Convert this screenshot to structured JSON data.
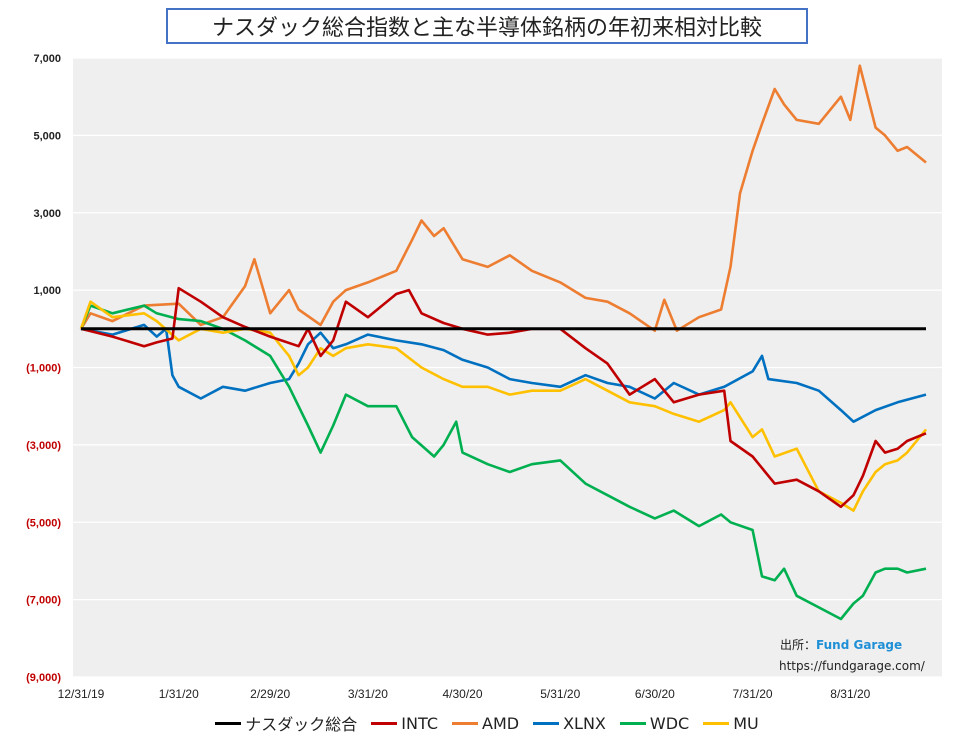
{
  "title": "ナスダック総合指数と主な半導体銘柄の年初来相対比較",
  "source": {
    "label": "出所：",
    "brand": "Fund Garage",
    "url": "https://fundgarage.com/"
  },
  "colors": {
    "positive_tick": "#222222",
    "negative_tick": "#c00000"
  },
  "chart_data": {
    "type": "line",
    "title": "ナスダック総合指数と主な半導体銘柄の年初来相対比較",
    "xlabel": "",
    "ylabel": "",
    "ylim": [
      -9000,
      7000
    ],
    "yticks": [
      7000,
      5000,
      3000,
      1000,
      -1000,
      -3000,
      -5000,
      -7000,
      -9000
    ],
    "ytick_labels": [
      "7,000",
      "5,000",
      "3,000",
      "1,000",
      "(1,000)",
      "(3,000)",
      "(5,000)",
      "(7,000)",
      "(9,000)"
    ],
    "xlim": [
      "12/31/19",
      "9/24/20"
    ],
    "xticks": [
      "12/31/19",
      "1/31/20",
      "2/29/20",
      "3/31/20",
      "4/30/20",
      "5/31/20",
      "6/30/20",
      "7/31/20",
      "8/31/20"
    ],
    "grid": true,
    "legend_position": "bottom",
    "series": [
      {
        "name": "ナスダック総合",
        "color": "#000000",
        "points": [
          [
            "12/31/19",
            0
          ],
          [
            "9/24/20",
            0
          ]
        ]
      },
      {
        "name": "INTC",
        "color": "#c00000",
        "points": [
          [
            "12/31/19",
            0
          ],
          [
            "1/10/20",
            -200
          ],
          [
            "1/20/20",
            -450
          ],
          [
            "1/24/20",
            -350
          ],
          [
            "1/29/20",
            -250
          ],
          [
            "1/31/20",
            1050
          ],
          [
            "2/7/20",
            700
          ],
          [
            "2/14/20",
            300
          ],
          [
            "2/21/20",
            50
          ],
          [
            "2/29/20",
            -200
          ],
          [
            "3/9/20",
            -450
          ],
          [
            "3/12/20",
            0
          ],
          [
            "3/16/20",
            -700
          ],
          [
            "3/20/20",
            -300
          ],
          [
            "3/24/20",
            700
          ],
          [
            "3/31/20",
            300
          ],
          [
            "4/9/20",
            900
          ],
          [
            "4/13/20",
            1000
          ],
          [
            "4/17/20",
            400
          ],
          [
            "4/24/20",
            150
          ],
          [
            "4/30/20",
            0
          ],
          [
            "5/8/20",
            -150
          ],
          [
            "5/15/20",
            -100
          ],
          [
            "5/22/20",
            0
          ],
          [
            "5/31/20",
            0
          ],
          [
            "6/8/20",
            -500
          ],
          [
            "6/15/20",
            -900
          ],
          [
            "6/22/20",
            -1700
          ],
          [
            "6/30/20",
            -1300
          ],
          [
            "7/6/20",
            -1900
          ],
          [
            "7/14/20",
            -1700
          ],
          [
            "7/22/20",
            -1600
          ],
          [
            "7/24/20",
            -2900
          ],
          [
            "7/31/20",
            -3300
          ],
          [
            "8/7/20",
            -4000
          ],
          [
            "8/14/20",
            -3900
          ],
          [
            "8/21/20",
            -4200
          ],
          [
            "8/28/20",
            -4600
          ],
          [
            "9/1/20",
            -4300
          ],
          [
            "9/4/20",
            -3800
          ],
          [
            "9/8/20",
            -2900
          ],
          [
            "9/11/20",
            -3200
          ],
          [
            "9/15/20",
            -3100
          ],
          [
            "9/18/20",
            -2900
          ],
          [
            "9/24/20",
            -2700
          ]
        ]
      },
      {
        "name": "AMD",
        "color": "#ed7d31",
        "points": [
          [
            "12/31/19",
            0
          ],
          [
            "1/3/20",
            400
          ],
          [
            "1/10/20",
            200
          ],
          [
            "1/20/20",
            600
          ],
          [
            "1/31/20",
            650
          ],
          [
            "2/7/20",
            100
          ],
          [
            "2/14/20",
            300
          ],
          [
            "2/21/20",
            1100
          ],
          [
            "2/24/20",
            1800
          ],
          [
            "2/29/20",
            400
          ],
          [
            "3/6/20",
            1000
          ],
          [
            "3/9/20",
            500
          ],
          [
            "3/16/20",
            100
          ],
          [
            "3/20/20",
            700
          ],
          [
            "3/24/20",
            1000
          ],
          [
            "3/31/20",
            1200
          ],
          [
            "4/9/20",
            1500
          ],
          [
            "4/14/20",
            2300
          ],
          [
            "4/17/20",
            2800
          ],
          [
            "4/21/20",
            2400
          ],
          [
            "4/24/20",
            2600
          ],
          [
            "4/30/20",
            1800
          ],
          [
            "5/8/20",
            1600
          ],
          [
            "5/15/20",
            1900
          ],
          [
            "5/22/20",
            1500
          ],
          [
            "5/31/20",
            1200
          ],
          [
            "6/8/20",
            800
          ],
          [
            "6/15/20",
            700
          ],
          [
            "6/22/20",
            400
          ],
          [
            "6/30/20",
            -50
          ],
          [
            "7/3/20",
            750
          ],
          [
            "7/7/20",
            -50
          ],
          [
            "7/14/20",
            300
          ],
          [
            "7/21/20",
            500
          ],
          [
            "7/24/20",
            1600
          ],
          [
            "7/27/20",
            3500
          ],
          [
            "7/31/20",
            4600
          ],
          [
            "8/3/20",
            5300
          ],
          [
            "8/7/20",
            6200
          ],
          [
            "8/10/20",
            5800
          ],
          [
            "8/14/20",
            5400
          ],
          [
            "8/21/20",
            5300
          ],
          [
            "8/28/20",
            6000
          ],
          [
            "8/31/20",
            5400
          ],
          [
            "9/3/20",
            6800
          ],
          [
            "9/8/20",
            5200
          ],
          [
            "9/11/20",
            5000
          ],
          [
            "9/15/20",
            4600
          ],
          [
            "9/18/20",
            4700
          ],
          [
            "9/24/20",
            4300
          ]
        ]
      },
      {
        "name": "XLNX",
        "color": "#0070c0",
        "points": [
          [
            "12/31/19",
            0
          ],
          [
            "1/10/20",
            -150
          ],
          [
            "1/20/20",
            100
          ],
          [
            "1/24/20",
            -200
          ],
          [
            "1/27/20",
            0
          ],
          [
            "1/29/20",
            -1200
          ],
          [
            "1/31/20",
            -1500
          ],
          [
            "2/7/20",
            -1800
          ],
          [
            "2/14/20",
            -1500
          ],
          [
            "2/21/20",
            -1600
          ],
          [
            "2/29/20",
            -1400
          ],
          [
            "3/6/20",
            -1300
          ],
          [
            "3/9/20",
            -900
          ],
          [
            "3/12/20",
            -400
          ],
          [
            "3/16/20",
            -100
          ],
          [
            "3/20/20",
            -500
          ],
          [
            "3/24/20",
            -400
          ],
          [
            "3/31/20",
            -150
          ],
          [
            "4/9/20",
            -300
          ],
          [
            "4/17/20",
            -400
          ],
          [
            "4/24/20",
            -550
          ],
          [
            "4/30/20",
            -800
          ],
          [
            "5/8/20",
            -1000
          ],
          [
            "5/15/20",
            -1300
          ],
          [
            "5/22/20",
            -1400
          ],
          [
            "5/31/20",
            -1500
          ],
          [
            "6/8/20",
            -1200
          ],
          [
            "6/15/20",
            -1400
          ],
          [
            "6/22/20",
            -1500
          ],
          [
            "6/30/20",
            -1800
          ],
          [
            "7/6/20",
            -1400
          ],
          [
            "7/14/20",
            -1700
          ],
          [
            "7/22/20",
            -1500
          ],
          [
            "7/31/20",
            -1100
          ],
          [
            "8/3/20",
            -700
          ],
          [
            "8/5/20",
            -1300
          ],
          [
            "8/14/20",
            -1400
          ],
          [
            "8/21/20",
            -1600
          ],
          [
            "8/28/20",
            -2100
          ],
          [
            "9/1/20",
            -2400
          ],
          [
            "9/8/20",
            -2100
          ],
          [
            "9/15/20",
            -1900
          ],
          [
            "9/24/20",
            -1700
          ]
        ]
      },
      {
        "name": "WDC",
        "color": "#00b050",
        "points": [
          [
            "12/31/19",
            0
          ],
          [
            "1/3/20",
            600
          ],
          [
            "1/10/20",
            400
          ],
          [
            "1/20/20",
            600
          ],
          [
            "1/24/20",
            400
          ],
          [
            "1/31/20",
            250
          ],
          [
            "2/7/20",
            200
          ],
          [
            "2/14/20",
            0
          ],
          [
            "2/21/20",
            -300
          ],
          [
            "2/29/20",
            -700
          ],
          [
            "3/6/20",
            -1500
          ],
          [
            "3/12/20",
            -2500
          ],
          [
            "3/16/20",
            -3200
          ],
          [
            "3/20/20",
            -2500
          ],
          [
            "3/24/20",
            -1700
          ],
          [
            "3/31/20",
            -2000
          ],
          [
            "4/9/20",
            -2000
          ],
          [
            "4/14/20",
            -2800
          ],
          [
            "4/21/20",
            -3300
          ],
          [
            "4/24/20",
            -3000
          ],
          [
            "4/28/20",
            -2400
          ],
          [
            "4/30/20",
            -3200
          ],
          [
            "5/8/20",
            -3500
          ],
          [
            "5/15/20",
            -3700
          ],
          [
            "5/22/20",
            -3500
          ],
          [
            "5/31/20",
            -3400
          ],
          [
            "6/8/20",
            -4000
          ],
          [
            "6/15/20",
            -4300
          ],
          [
            "6/22/20",
            -4600
          ],
          [
            "6/30/20",
            -4900
          ],
          [
            "7/6/20",
            -4700
          ],
          [
            "7/14/20",
            -5100
          ],
          [
            "7/21/20",
            -4800
          ],
          [
            "7/24/20",
            -5000
          ],
          [
            "7/31/20",
            -5200
          ],
          [
            "8/3/20",
            -6400
          ],
          [
            "8/7/20",
            -6500
          ],
          [
            "8/10/20",
            -6200
          ],
          [
            "8/14/20",
            -6900
          ],
          [
            "8/21/20",
            -7200
          ],
          [
            "8/28/20",
            -7500
          ],
          [
            "9/1/20",
            -7100
          ],
          [
            "9/4/20",
            -6900
          ],
          [
            "9/8/20",
            -6300
          ],
          [
            "9/11/20",
            -6200
          ],
          [
            "9/15/20",
            -6200
          ],
          [
            "9/18/20",
            -6300
          ],
          [
            "9/24/20",
            -6200
          ]
        ]
      },
      {
        "name": "MU",
        "color": "#ffc000",
        "points": [
          [
            "12/31/19",
            0
          ],
          [
            "1/3/20",
            700
          ],
          [
            "1/10/20",
            300
          ],
          [
            "1/20/20",
            400
          ],
          [
            "1/24/20",
            200
          ],
          [
            "1/31/20",
            -300
          ],
          [
            "2/7/20",
            0
          ],
          [
            "2/14/20",
            -100
          ],
          [
            "2/21/20",
            0
          ],
          [
            "2/29/20",
            -100
          ],
          [
            "3/6/20",
            -700
          ],
          [
            "3/9/20",
            -1200
          ],
          [
            "3/12/20",
            -1000
          ],
          [
            "3/16/20",
            -500
          ],
          [
            "3/20/20",
            -700
          ],
          [
            "3/24/20",
            -500
          ],
          [
            "3/31/20",
            -400
          ],
          [
            "4/9/20",
            -500
          ],
          [
            "4/17/20",
            -1000
          ],
          [
            "4/24/20",
            -1300
          ],
          [
            "4/30/20",
            -1500
          ],
          [
            "5/8/20",
            -1500
          ],
          [
            "5/15/20",
            -1700
          ],
          [
            "5/22/20",
            -1600
          ],
          [
            "5/31/20",
            -1600
          ],
          [
            "6/8/20",
            -1300
          ],
          [
            "6/15/20",
            -1600
          ],
          [
            "6/22/20",
            -1900
          ],
          [
            "6/30/20",
            -2000
          ],
          [
            "7/6/20",
            -2200
          ],
          [
            "7/14/20",
            -2400
          ],
          [
            "7/22/20",
            -2100
          ],
          [
            "7/24/20",
            -1900
          ],
          [
            "7/31/20",
            -2800
          ],
          [
            "8/3/20",
            -2600
          ],
          [
            "8/7/20",
            -3300
          ],
          [
            "8/14/20",
            -3100
          ],
          [
            "8/21/20",
            -4200
          ],
          [
            "8/28/20",
            -4500
          ],
          [
            "9/1/20",
            -4700
          ],
          [
            "9/4/20",
            -4200
          ],
          [
            "9/8/20",
            -3700
          ],
          [
            "9/11/20",
            -3500
          ],
          [
            "9/15/20",
            -3400
          ],
          [
            "9/18/20",
            -3200
          ],
          [
            "9/24/20",
            -2600
          ]
        ]
      }
    ]
  }
}
